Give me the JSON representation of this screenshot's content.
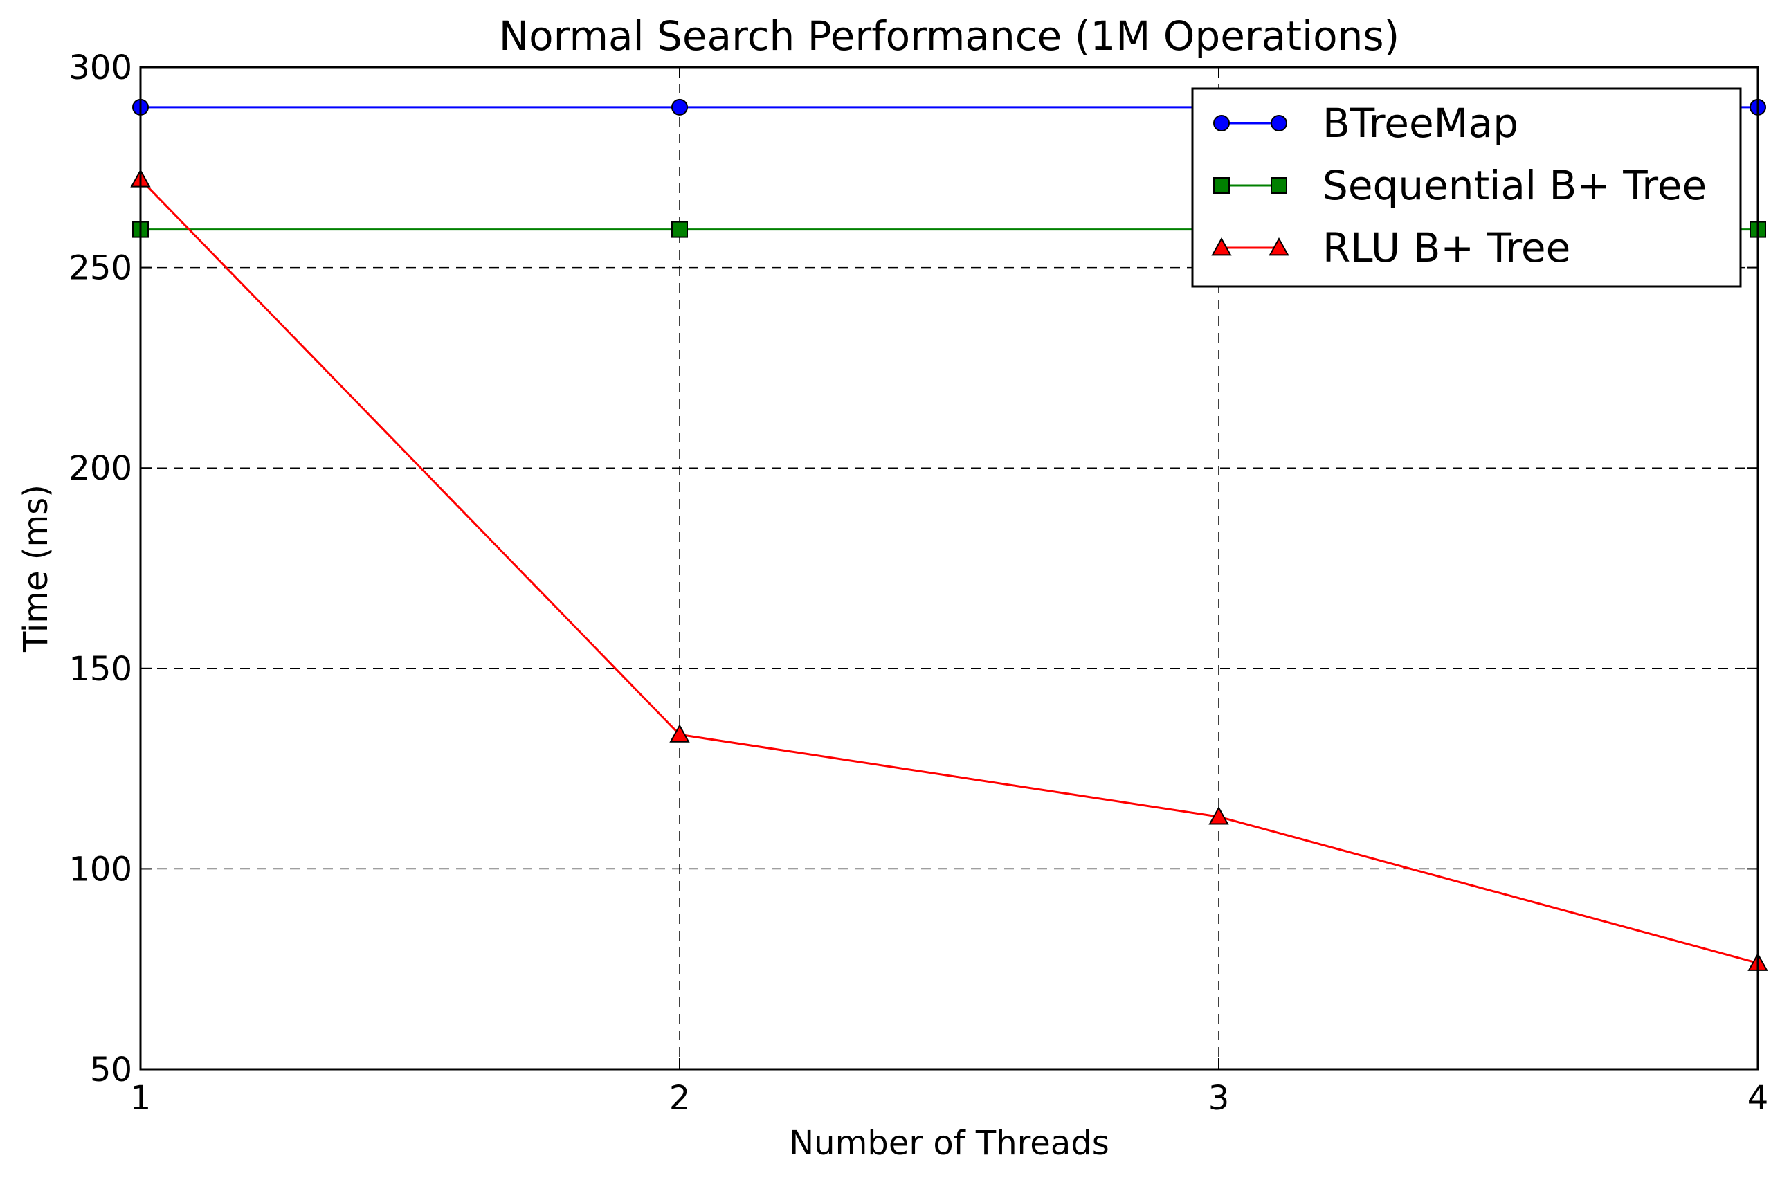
{
  "chart_data": {
    "type": "line",
    "title": "Normal Search Performance (1M Operations)",
    "xlabel": "Number of Threads",
    "ylabel": "Time (ms)",
    "x": [
      1,
      2,
      3,
      4
    ],
    "xlim": [
      1,
      4
    ],
    "ylim": [
      50,
      300
    ],
    "xticks": [
      "1",
      "2",
      "3",
      "4"
    ],
    "yticks": [
      "50",
      "100",
      "150",
      "200",
      "250",
      "300"
    ],
    "grid": true,
    "legend_position": "top-right",
    "series": [
      {
        "name": "BTreeMap",
        "values": [
          290,
          290,
          290,
          290
        ],
        "color": "#0000ff",
        "marker": "circle"
      },
      {
        "name": "Sequential B+ Tree",
        "values": [
          259.5,
          259.5,
          259.5,
          259.5
        ],
        "color": "#008000",
        "marker": "square"
      },
      {
        "name": "RLU B+ Tree",
        "values": [
          272,
          133.5,
          113,
          76.5
        ],
        "color": "#ff0000",
        "marker": "triangle"
      }
    ]
  }
}
